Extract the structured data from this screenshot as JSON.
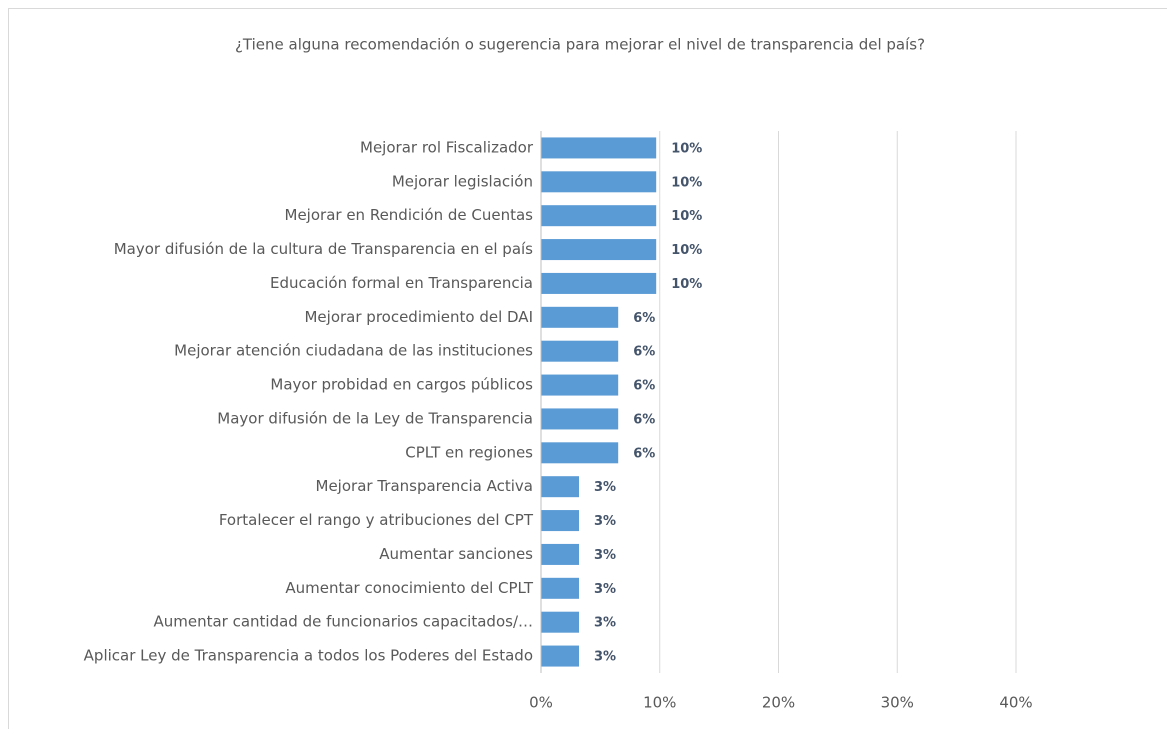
{
  "chart_data": {
    "type": "barh",
    "title": "¿Tiene alguna recomendación o sugerencia para mejorar el nivel de transparencia del país?",
    "categories": [
      "Mejorar rol Fiscalizador",
      "Mejorar legislación",
      "Mejorar en Rendición de Cuentas",
      "Mayor difusión de la cultura de Transparencia en el país",
      "Educación formal en Transparencia",
      "Mejorar procedimiento del DAI",
      "Mejorar atención ciudadana de las instituciones",
      "Mayor probidad en cargos públicos",
      "Mayor difusión de la Ley de Transparencia",
      "CPLT en regiones",
      "Mejorar Transparencia Activa",
      "Fortalecer el rango y atribuciones del CPT",
      "Aumentar sanciones",
      "Aumentar conocimiento del CPLT",
      "Aumentar cantidad de funcionarios capacitados/…",
      "Aplicar Ley de Transparencia a todos los Poderes del Estado"
    ],
    "values": [
      9.7,
      9.7,
      9.7,
      9.7,
      9.7,
      6.5,
      6.5,
      6.5,
      6.5,
      6.5,
      3.2,
      3.2,
      3.2,
      3.2,
      3.2,
      3.2
    ],
    "value_labels": [
      "10%",
      "10%",
      "10%",
      "10%",
      "10%",
      "6%",
      "6%",
      "6%",
      "6%",
      "6%",
      "3%",
      "3%",
      "3%",
      "3%",
      "3%",
      "3%"
    ],
    "color": "#5b9bd5",
    "xlim": [
      0,
      40
    ],
    "xticks": [
      {
        "value": 0,
        "label": "0%"
      },
      {
        "value": 10,
        "label": "10%"
      },
      {
        "value": 20,
        "label": "20%"
      },
      {
        "value": 30,
        "label": "30%"
      },
      {
        "value": 40,
        "label": "40%"
      }
    ],
    "grid": true
  }
}
